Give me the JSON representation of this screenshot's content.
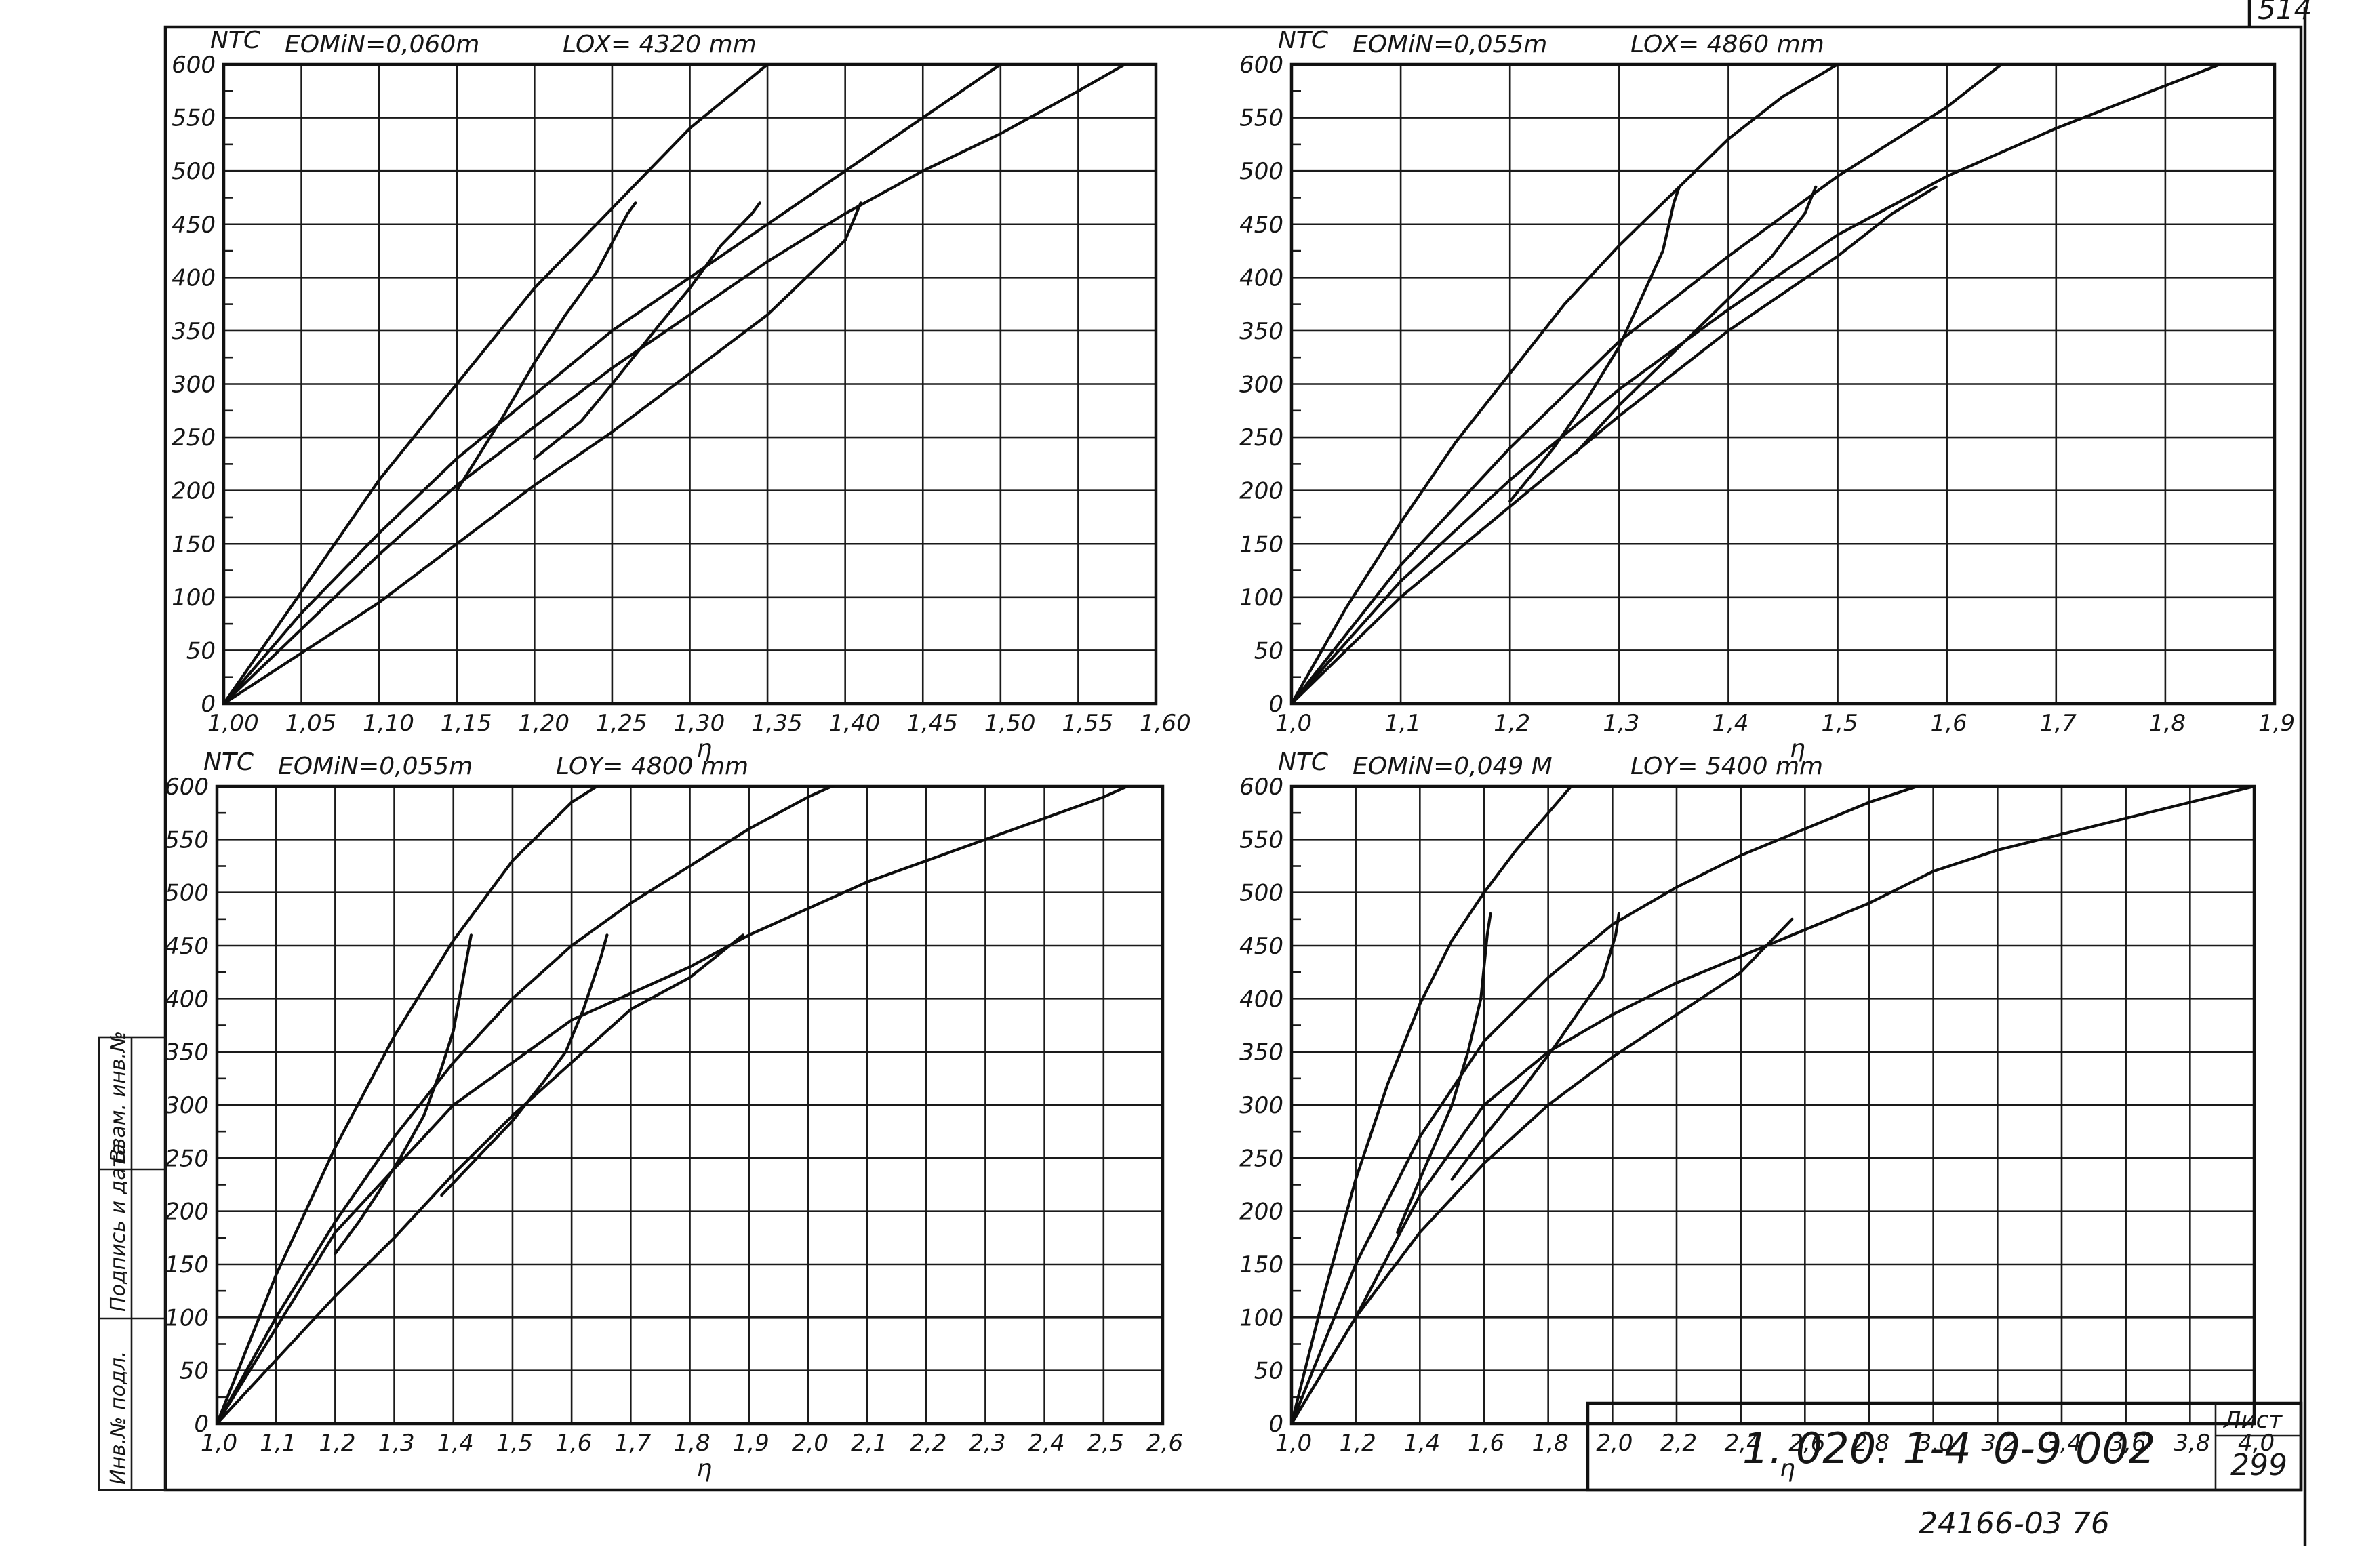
{
  "sheet": {
    "corner_number": "514",
    "code_left": "1. 020. 1-4",
    "code_right": "0-9 002",
    "sheet_label": "Лист",
    "sheet_number": "299",
    "bottom_note": "24166-03 76",
    "side_labels": [
      "Инв.№ подл.",
      "Подпись и дата",
      "Взам. инв.№"
    ]
  },
  "chart_data": [
    {
      "type": "line",
      "panel": "top-left",
      "ylabel": "NTC",
      "param1": "EOMiN=0,060m",
      "param2": "LOX= 4320 mm",
      "xlabel": "η",
      "xlim": [
        1.0,
        1.6
      ],
      "ylim": [
        0,
        600
      ],
      "xticks": [
        1.0,
        1.05,
        1.1,
        1.15,
        1.2,
        1.25,
        1.3,
        1.35,
        1.4,
        1.45,
        1.5,
        1.55,
        1.6
      ],
      "xtick_labels": [
        "1,00",
        "1,05",
        "1,10",
        "1,15",
        "1,20",
        "1,25",
        "1,30",
        "1,35",
        "1,40",
        "1,45",
        "1,50",
        "1,55",
        "1,60"
      ],
      "yticks": [
        0,
        50,
        100,
        150,
        200,
        250,
        300,
        350,
        400,
        450,
        500,
        550,
        600
      ],
      "ytick_labels": [
        "0",
        "50",
        "100",
        "150",
        "200",
        "250",
        "300",
        "350",
        "400",
        "450",
        "500",
        "550",
        "600"
      ],
      "grid": true,
      "series": [
        {
          "x": [
            1.0,
            1.05,
            1.1,
            1.15,
            1.2,
            1.25,
            1.3,
            1.35
          ],
          "y": [
            0,
            105,
            210,
            300,
            390,
            465,
            540,
            600
          ]
        },
        {
          "x": [
            1.0,
            1.05,
            1.1,
            1.15,
            1.2,
            1.25,
            1.3,
            1.35,
            1.4,
            1.45,
            1.5
          ],
          "y": [
            0,
            85,
            160,
            230,
            290,
            350,
            400,
            450,
            500,
            550,
            600
          ]
        },
        {
          "x": [
            1.0,
            1.05,
            1.1,
            1.15,
            1.2,
            1.25,
            1.3,
            1.35,
            1.4,
            1.45,
            1.5,
            1.55,
            1.58
          ],
          "y": [
            0,
            70,
            140,
            205,
            260,
            315,
            365,
            415,
            460,
            500,
            535,
            575,
            600
          ]
        },
        {
          "x": [
            1.0,
            1.1,
            1.15,
            1.2,
            1.25,
            1.3,
            1.35,
            1.4,
            1.41
          ],
          "y": [
            0,
            95,
            150,
            205,
            255,
            310,
            365,
            435,
            470
          ]
        },
        {
          "x": [
            1.265,
            1.26,
            1.24,
            1.22,
            1.2,
            1.18,
            1.15
          ],
          "y": [
            470,
            460,
            405,
            365,
            320,
            270,
            200
          ]
        },
        {
          "x": [
            1.345,
            1.34,
            1.32,
            1.3,
            1.28,
            1.25,
            1.23,
            1.2
          ],
          "y": [
            470,
            460,
            430,
            390,
            355,
            300,
            265,
            230
          ]
        }
      ]
    },
    {
      "type": "line",
      "panel": "top-right",
      "ylabel": "NTC",
      "param1": "EOMiN=0,055m",
      "param2": "LOX= 4860 mm",
      "xlabel": "η",
      "xlim": [
        1.0,
        1.9
      ],
      "ylim": [
        0,
        600
      ],
      "xticks": [
        1.0,
        1.1,
        1.2,
        1.3,
        1.4,
        1.5,
        1.6,
        1.7,
        1.8,
        1.9
      ],
      "xtick_labels": [
        "1,0",
        "1,1",
        "1,2",
        "1,3",
        "1,4",
        "1,5",
        "1,6",
        "1,7",
        "1,8",
        "1,9"
      ],
      "yticks": [
        0,
        50,
        100,
        150,
        200,
        250,
        300,
        350,
        400,
        450,
        500,
        550,
        600
      ],
      "ytick_labels": [
        "0",
        "50",
        "100",
        "150",
        "200",
        "250",
        "300",
        "350",
        "400",
        "450",
        "500",
        "550",
        "600"
      ],
      "grid": true,
      "series": [
        {
          "x": [
            1.0,
            1.05,
            1.1,
            1.15,
            1.2,
            1.25,
            1.3,
            1.35,
            1.4,
            1.45,
            1.5
          ],
          "y": [
            0,
            90,
            170,
            245,
            310,
            375,
            430,
            480,
            530,
            570,
            600
          ]
        },
        {
          "x": [
            1.0,
            1.1,
            1.2,
            1.3,
            1.4,
            1.5,
            1.6,
            1.65
          ],
          "y": [
            0,
            130,
            240,
            340,
            420,
            495,
            560,
            600
          ]
        },
        {
          "x": [
            1.0,
            1.1,
            1.2,
            1.3,
            1.4,
            1.5,
            1.6,
            1.7,
            1.8,
            1.85
          ],
          "y": [
            0,
            115,
            210,
            295,
            370,
            440,
            495,
            540,
            580,
            600
          ]
        },
        {
          "x": [
            1.0,
            1.1,
            1.2,
            1.3,
            1.4,
            1.5,
            1.55,
            1.59
          ],
          "y": [
            0,
            100,
            185,
            270,
            350,
            420,
            460,
            485
          ]
        },
        {
          "x": [
            1.355,
            1.35,
            1.34,
            1.32,
            1.3,
            1.27,
            1.24,
            1.2
          ],
          "y": [
            485,
            470,
            425,
            380,
            335,
            285,
            240,
            190
          ]
        },
        {
          "x": [
            1.48,
            1.47,
            1.44,
            1.41,
            1.38,
            1.34,
            1.3,
            1.26
          ],
          "y": [
            485,
            460,
            420,
            390,
            360,
            320,
            280,
            235
          ]
        }
      ]
    },
    {
      "type": "line",
      "panel": "bottom-left",
      "ylabel": "NTC",
      "param1": "EOMiN=0,055m",
      "param2": "LOY= 4800 mm",
      "xlabel": "η",
      "xlim": [
        1.0,
        2.6
      ],
      "ylim": [
        0,
        600
      ],
      "xticks": [
        1.0,
        1.1,
        1.2,
        1.3,
        1.4,
        1.5,
        1.6,
        1.7,
        1.8,
        1.9,
        2.0,
        2.1,
        2.2,
        2.3,
        2.4,
        2.5,
        2.6
      ],
      "xtick_labels": [
        "1,0",
        "1,1",
        "1,2",
        "1,3",
        "1,4",
        "1,5",
        "1,6",
        "1,7",
        "1,8",
        "1,9",
        "2,0",
        "2,1",
        "2,2",
        "2,3",
        "2,4",
        "2,5",
        "2,6"
      ],
      "yticks": [
        0,
        50,
        100,
        150,
        200,
        250,
        300,
        350,
        400,
        450,
        500,
        550,
        600
      ],
      "ytick_labels": [
        "0",
        "50",
        "100",
        "150",
        "200",
        "250",
        "300",
        "350",
        "400",
        "450",
        "500",
        "550",
        "600"
      ],
      "grid": true,
      "series": [
        {
          "x": [
            1.0,
            1.1,
            1.2,
            1.3,
            1.4,
            1.5,
            1.6,
            1.7
          ],
          "y": [
            0,
            140,
            260,
            365,
            455,
            530,
            585,
            620
          ]
        },
        {
          "x": [
            1.0,
            1.1,
            1.2,
            1.3,
            1.4,
            1.5,
            1.6,
            1.7,
            1.8,
            1.9,
            2.0,
            2.1
          ],
          "y": [
            0,
            100,
            190,
            270,
            340,
            400,
            450,
            490,
            525,
            560,
            590,
            615
          ]
        },
        {
          "x": [
            1.0,
            1.2,
            1.4,
            1.6,
            1.8,
            1.9,
            2.0,
            2.1,
            2.2,
            2.3,
            2.4,
            2.5,
            2.54
          ],
          "y": [
            0,
            180,
            300,
            380,
            430,
            460,
            485,
            510,
            530,
            550,
            570,
            590,
            600
          ]
        },
        {
          "x": [
            1.0,
            1.1,
            1.2,
            1.3,
            1.4,
            1.5,
            1.6,
            1.7,
            1.8,
            1.89
          ],
          "y": [
            0,
            60,
            120,
            175,
            235,
            290,
            340,
            390,
            420,
            460
          ]
        },
        {
          "x": [
            1.43,
            1.42,
            1.4,
            1.38,
            1.35,
            1.31,
            1.27,
            1.24,
            1.2
          ],
          "y": [
            460,
            430,
            370,
            335,
            290,
            250,
            215,
            190,
            160
          ]
        },
        {
          "x": [
            1.66,
            1.65,
            1.62,
            1.59,
            1.55,
            1.5,
            1.44,
            1.38
          ],
          "y": [
            460,
            440,
            390,
            350,
            320,
            285,
            250,
            215
          ]
        }
      ]
    },
    {
      "type": "line",
      "panel": "bottom-right",
      "ylabel": "NTC",
      "param1": "EOMiN=0,049 M",
      "param2": "LOY= 5400 mm",
      "xlabel": "η",
      "xlim": [
        1.0,
        4.0
      ],
      "ylim": [
        0,
        600
      ],
      "xticks": [
        1.0,
        1.2,
        1.4,
        1.6,
        1.8,
        2.0,
        2.2,
        2.4,
        2.6,
        2.8,
        3.0,
        3.2,
        3.4,
        3.6,
        3.8,
        4.0
      ],
      "xtick_labels": [
        "1,0",
        "1,2",
        "1,4",
        "1,6",
        "1,8",
        "2,0",
        "2,2",
        "2,4",
        "2,6",
        "2,8",
        "3,0",
        "3,2",
        "3,4",
        "3,6",
        "3,8",
        "4,0"
      ],
      "yticks": [
        0,
        50,
        100,
        150,
        200,
        250,
        300,
        350,
        400,
        450,
        500,
        550,
        600
      ],
      "ytick_labels": [
        "0",
        "50",
        "100",
        "150",
        "200",
        "250",
        "300",
        "350",
        "400",
        "450",
        "500",
        "550",
        "600"
      ],
      "grid": true,
      "series": [
        {
          "x": [
            1.0,
            1.1,
            1.2,
            1.3,
            1.4,
            1.5,
            1.6,
            1.7,
            1.8,
            1.9
          ],
          "y": [
            0,
            120,
            230,
            320,
            395,
            455,
            500,
            540,
            575,
            610
          ]
        },
        {
          "x": [
            1.0,
            1.2,
            1.4,
            1.6,
            1.8,
            2.0,
            2.2,
            2.4,
            2.6,
            2.8,
            3.0
          ],
          "y": [
            0,
            150,
            270,
            360,
            420,
            470,
            505,
            535,
            560,
            585,
            605
          ]
        },
        {
          "x": [
            1.0,
            1.2,
            1.4,
            1.6,
            1.8,
            2.0,
            2.2,
            2.4,
            2.6,
            2.8,
            3.0,
            3.2,
            3.4,
            3.6,
            3.8,
            4.0
          ],
          "y": [
            0,
            100,
            215,
            300,
            350,
            385,
            415,
            440,
            465,
            490,
            520,
            540,
            555,
            570,
            585,
            600
          ]
        },
        {
          "x": [
            1.0,
            1.2,
            1.4,
            1.6,
            1.8,
            2.0,
            2.2,
            2.4,
            2.56
          ],
          "y": [
            0,
            100,
            180,
            245,
            300,
            345,
            385,
            425,
            475
          ]
        },
        {
          "x": [
            1.62,
            1.61,
            1.59,
            1.55,
            1.5,
            1.45,
            1.4,
            1.33
          ],
          "y": [
            480,
            460,
            400,
            350,
            300,
            265,
            230,
            180
          ]
        },
        {
          "x": [
            2.02,
            2.01,
            1.97,
            1.9,
            1.82,
            1.72,
            1.6,
            1.5
          ],
          "y": [
            480,
            460,
            420,
            390,
            355,
            315,
            270,
            230
          ]
        }
      ]
    }
  ]
}
